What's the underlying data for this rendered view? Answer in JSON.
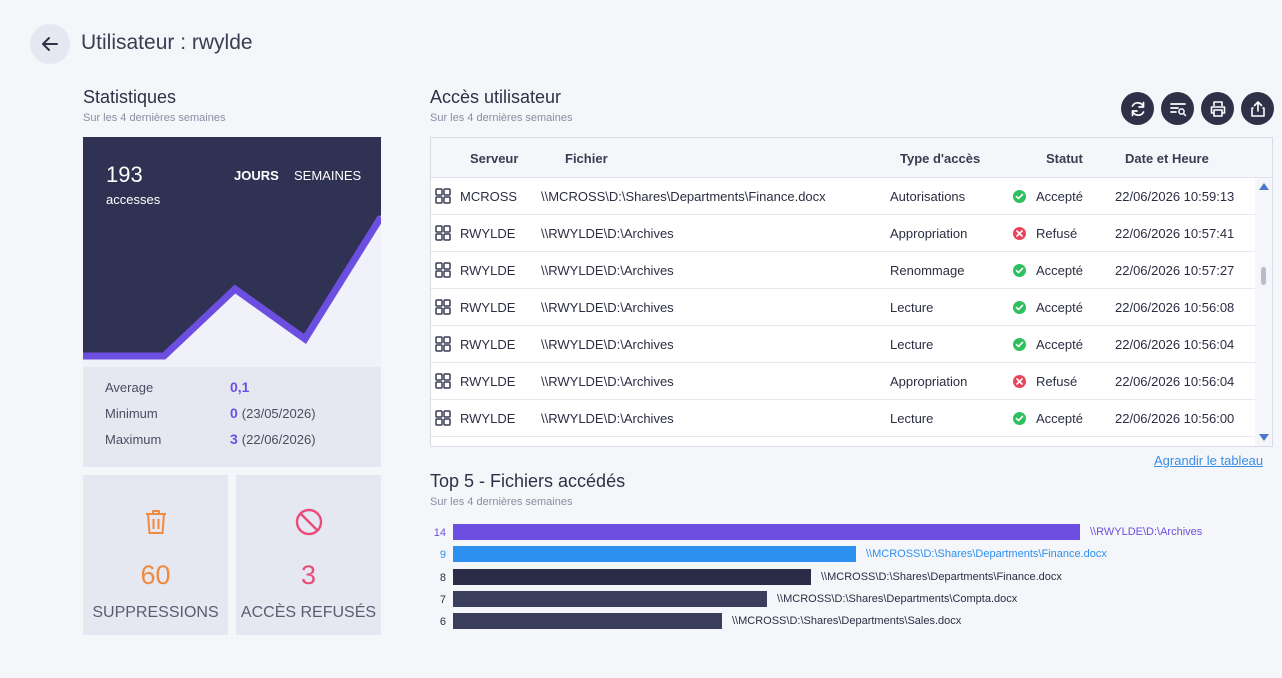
{
  "header": {
    "title": "Utilisateur : rwylde"
  },
  "stats": {
    "title": "Statistiques",
    "subtitle": "Sur les 4 dernières semaines",
    "count": "193",
    "count_label": "accesses",
    "toggle_days": "JOURS",
    "toggle_weeks": "SEMAINES",
    "average_label": "Average",
    "average_value": "0,1",
    "minimum_label": "Minimum",
    "minimum_value": "0",
    "minimum_date": "(23/05/2026)",
    "maximum_label": "Maximum",
    "maximum_value": "3",
    "maximum_date": "(22/06/2026)"
  },
  "tiles": {
    "deletions_value": "60",
    "deletions_label": "SUPPRESSIONS",
    "denied_value": "3",
    "denied_label": "ACCÈS REFUSÉS"
  },
  "access": {
    "title": "Accès utilisateur",
    "subtitle": "Sur les 4 dernières semaines",
    "columns": {
      "server": "Serveur",
      "file": "Fichier",
      "type": "Type d'accès",
      "status": "Statut",
      "datetime": "Date et Heure"
    },
    "rows": [
      {
        "server": "MCROSS",
        "file": "\\\\MCROSS\\D:\\Shares\\Departments\\Finance.docx",
        "type": "Autorisations",
        "status": "Accepté",
        "ok": true,
        "datetime": "22/06/2026 10:59:13"
      },
      {
        "server": "RWYLDE",
        "file": "\\\\RWYLDE\\D:\\Archives",
        "type": "Appropriation",
        "status": "Refusé",
        "ok": false,
        "datetime": "22/06/2026 10:57:41"
      },
      {
        "server": "RWYLDE",
        "file": "\\\\RWYLDE\\D:\\Archives",
        "type": "Renommage",
        "status": "Accepté",
        "ok": true,
        "datetime": "22/06/2026 10:57:27"
      },
      {
        "server": "RWYLDE",
        "file": "\\\\RWYLDE\\D:\\Archives",
        "type": "Lecture",
        "status": "Accepté",
        "ok": true,
        "datetime": "22/06/2026 10:56:08"
      },
      {
        "server": "RWYLDE",
        "file": "\\\\RWYLDE\\D:\\Archives",
        "type": "Lecture",
        "status": "Accepté",
        "ok": true,
        "datetime": "22/06/2026 10:56:04"
      },
      {
        "server": "RWYLDE",
        "file": "\\\\RWYLDE\\D:\\Archives",
        "type": "Appropriation",
        "status": "Refusé",
        "ok": false,
        "datetime": "22/06/2026 10:56:04"
      },
      {
        "server": "RWYLDE",
        "file": "\\\\RWYLDE\\D:\\Archives",
        "type": "Lecture",
        "status": "Accepté",
        "ok": true,
        "datetime": "22/06/2026 10:56:00"
      }
    ],
    "expand_link": "Agrandir le tableau",
    "toolbar_icons": [
      "refresh-icon",
      "filter-search-icon",
      "print-icon",
      "export-icon"
    ],
    "scroll_position": 0.35
  },
  "top_files": {
    "title": "Top 5 - Fichiers accédés",
    "subtitle": "Sur les 4 dernières semaines",
    "items": [
      {
        "count": "14",
        "label": "\\\\RWYLDE\\D:\\Archives",
        "color": "#6c4fe0",
        "label_color": "#6c4fe0"
      },
      {
        "count": "9",
        "label": "\\\\MCROSS\\D:\\Shares\\Departments\\Finance.docx",
        "color": "#2d8ff0",
        "label_color": "#2d8ff0"
      },
      {
        "count": "8",
        "label": "\\\\MCROSS\\D:\\Shares\\Departments\\Finance.docx",
        "color": "#2b2d48",
        "label_color": "#2b2d42"
      },
      {
        "count": "7",
        "label": "\\\\MCROSS\\D:\\Shares\\Departments\\Compta.docx",
        "color": "#3a3d5c",
        "label_color": "#2b2d42"
      },
      {
        "count": "6",
        "label": "\\\\MCROSS\\D:\\Shares\\Departments\\Sales.docx",
        "color": "#3a3d5c",
        "label_color": "#2b2d42"
      }
    ]
  },
  "colors": {
    "accent": "#6c4fe0",
    "dark": "#2f3148",
    "success": "#2fbf5d",
    "danger": "#e8435a",
    "orange": "#f08a3e",
    "pink": "#e84d7a"
  }
}
